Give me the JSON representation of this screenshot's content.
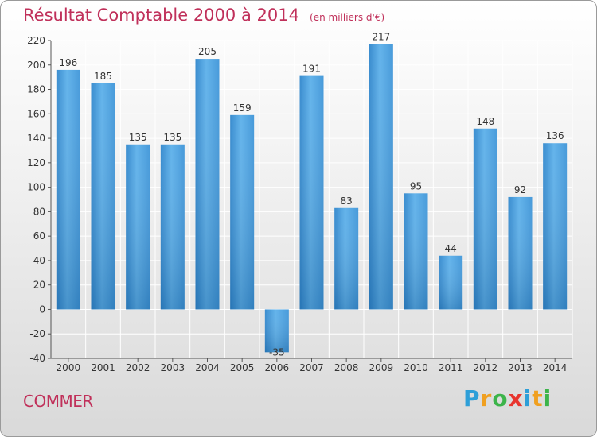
{
  "chart_data": {
    "type": "bar",
    "title": "Résultat Comptable 2000 à 2014",
    "subtitle": "(en milliers d'€)",
    "categories": [
      "2000",
      "2001",
      "2002",
      "2003",
      "2004",
      "2005",
      "2006",
      "2007",
      "2008",
      "2009",
      "2010",
      "2011",
      "2012",
      "2013",
      "2014"
    ],
    "values": [
      196,
      185,
      135,
      135,
      205,
      159,
      -35,
      191,
      83,
      217,
      95,
      44,
      148,
      92,
      136
    ],
    "ylim": [
      -40,
      220
    ],
    "yticks": [
      -40,
      -20,
      0,
      20,
      40,
      60,
      80,
      100,
      120,
      140,
      160,
      180,
      200,
      220
    ],
    "grid": true,
    "xlabel": "",
    "ylabel": ""
  },
  "commune": "COMMER",
  "logo": {
    "letters": [
      "P",
      "r",
      "o",
      "x",
      "i",
      "t",
      "i"
    ],
    "colors": [
      "#2e9fd8",
      "#f0a020",
      "#3cb44a",
      "#e8352e",
      "#2e9fd8",
      "#f0a020",
      "#3cb44a"
    ]
  },
  "colors": {
    "title": "#c0305a",
    "bar_light": "#5aaee8",
    "bar_dark": "#2a7cc0",
    "grid": "#ffffff",
    "axis": "#555555"
  }
}
